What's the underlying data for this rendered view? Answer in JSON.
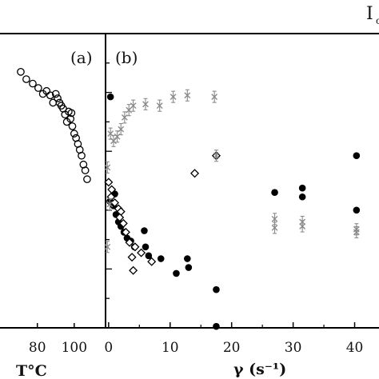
{
  "chart_data": [
    {
      "type": "scatter",
      "panel_label": "(a)",
      "xlabel": "T°C",
      "ylabel": "",
      "xlim": [
        58,
        117
      ],
      "ylim": [
        0,
        10
      ],
      "x_ticks": [
        80,
        100
      ],
      "grid": false,
      "series": [
        {
          "marker": "open-circle",
          "color": "#000000",
          "points": [
            [
              71,
              8.7
            ],
            [
              74,
              8.45
            ],
            [
              77.5,
              8.3
            ],
            [
              80.5,
              8.15
            ],
            [
              83,
              7.95
            ],
            [
              85,
              8.05
            ],
            [
              87,
              7.9
            ],
            [
              88.5,
              7.65
            ],
            [
              90,
              7.95
            ],
            [
              91,
              7.8
            ],
            [
              92,
              7.65
            ],
            [
              93,
              7.55
            ],
            [
              94,
              7.45
            ],
            [
              95,
              7.25
            ],
            [
              96,
              7.0
            ],
            [
              97,
              7.35
            ],
            [
              98,
              7.1
            ],
            [
              98.5,
              7.3
            ],
            [
              99,
              6.85
            ],
            [
              100,
              6.6
            ],
            [
              101,
              6.45
            ],
            [
              102,
              6.25
            ],
            [
              103,
              6.05
            ],
            [
              104,
              5.85
            ],
            [
              105,
              5.55
            ],
            [
              106,
              5.35
            ],
            [
              107,
              5.05
            ]
          ]
        }
      ]
    },
    {
      "type": "scatter",
      "panel_label": "(b)",
      "xlabel": "γ (s⁻¹)",
      "ylabel": "",
      "xlim": [
        -0.5,
        45
      ],
      "ylim": [
        0,
        10
      ],
      "x_ticks": [
        0,
        10,
        20,
        30,
        40
      ],
      "grid": false,
      "series": [
        {
          "marker": "filled-circle",
          "color": "#000000",
          "points": [
            [
              0.3,
              7.85
            ],
            [
              0.2,
              4.3
            ],
            [
              0.8,
              4.15
            ],
            [
              1.2,
              3.85
            ],
            [
              1.6,
              3.6
            ],
            [
              2.0,
              3.45
            ],
            [
              2.5,
              3.25
            ],
            [
              3.0,
              3.05
            ],
            [
              3.6,
              2.95
            ],
            [
              4.2,
              2.75
            ],
            [
              6.0,
              2.75
            ],
            [
              6.5,
              2.45
            ],
            [
              8.5,
              2.35
            ],
            [
              11.0,
              1.85
            ],
            [
              13.0,
              2.05
            ],
            [
              12.8,
              2.35
            ],
            [
              17.5,
              1.3
            ],
            [
              17.5,
              0.05
            ],
            [
              1.0,
              4.55
            ],
            [
              5.8,
              3.3
            ],
            [
              27.0,
              4.6
            ],
            [
              31.5,
              4.75
            ],
            [
              31.5,
              4.45
            ],
            [
              40.3,
              5.85
            ],
            [
              40.3,
              4.0
            ]
          ]
        },
        {
          "marker": "open-diamond",
          "color": "#000000",
          "points": [
            [
              0.0,
              4.95
            ],
            [
              0.4,
              4.45
            ],
            [
              1.0,
              4.25
            ],
            [
              1.6,
              4.05
            ],
            [
              2.0,
              3.95
            ],
            [
              2.4,
              3.55
            ],
            [
              2.8,
              3.25
            ],
            [
              3.4,
              2.9
            ],
            [
              4.3,
              2.75
            ],
            [
              5.3,
              2.55
            ],
            [
              3.8,
              2.4
            ],
            [
              7.0,
              2.25
            ],
            [
              4.0,
              1.95
            ],
            [
              14.0,
              5.25
            ],
            [
              17.5,
              5.85
            ],
            [
              0.5,
              4.7
            ],
            [
              1.8,
              3.75
            ]
          ]
        },
        {
          "marker": "x-errorbar",
          "color": "#8a8a8a",
          "points": [
            [
              -0.2,
              5.45
            ],
            [
              0.3,
              6.6
            ],
            [
              0.8,
              6.35
            ],
            [
              1.4,
              6.5
            ],
            [
              2.0,
              6.75
            ],
            [
              2.6,
              7.15
            ],
            [
              3.3,
              7.4
            ],
            [
              4.0,
              7.55
            ],
            [
              6.0,
              7.6
            ],
            [
              8.3,
              7.55
            ],
            [
              10.5,
              7.85
            ],
            [
              12.8,
              7.9
            ],
            [
              17.2,
              7.85
            ],
            [
              17.5,
              5.85
            ],
            [
              27.0,
              3.7
            ],
            [
              27.0,
              3.4
            ],
            [
              31.5,
              3.6
            ],
            [
              31.5,
              3.45
            ],
            [
              40.3,
              3.35
            ],
            [
              40.3,
              3.25
            ],
            [
              -0.2,
              2.75
            ],
            [
              0.2,
              4.2
            ]
          ]
        }
      ]
    }
  ],
  "header_fragment": "I",
  "header_subscript": "c"
}
